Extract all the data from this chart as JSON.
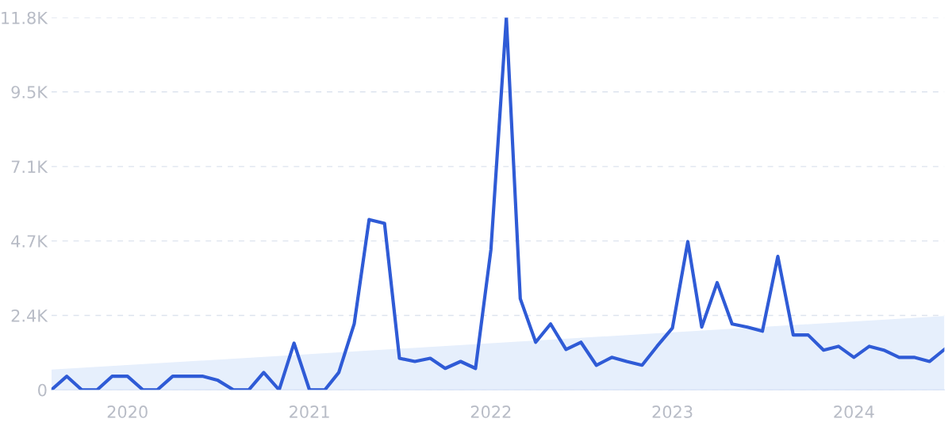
{
  "chart_data": {
    "type": "line",
    "x": [
      "2019-08",
      "2019-09",
      "2019-10",
      "2019-11",
      "2019-12",
      "2020-01",
      "2020-02",
      "2020-03",
      "2020-04",
      "2020-05",
      "2020-06",
      "2020-07",
      "2020-08",
      "2020-09",
      "2020-10",
      "2020-11",
      "2020-12",
      "2021-01",
      "2021-02",
      "2021-03",
      "2021-04",
      "2021-05",
      "2021-06",
      "2021-07",
      "2021-08",
      "2021-09",
      "2021-10",
      "2021-11",
      "2021-12",
      "2022-01",
      "2022-02",
      "2022-03",
      "2022-04",
      "2022-05",
      "2022-06",
      "2022-07",
      "2022-08",
      "2022-09",
      "2022-10",
      "2022-11",
      "2022-12",
      "2023-01",
      "2023-02",
      "2023-03",
      "2023-04",
      "2023-05",
      "2023-06",
      "2023-07",
      "2023-08",
      "2023-09",
      "2023-10",
      "2023-11",
      "2023-12",
      "2024-01",
      "2024-02",
      "2024-03",
      "2024-04",
      "2024-05",
      "2024-06",
      "2024-07"
    ],
    "series": [
      {
        "type": "area",
        "color": "#e6effc",
        "x": [
          "2019-08",
          "2024-07"
        ],
        "values": [
          640,
          2340
        ]
      },
      {
        "color": "#2f5bd6",
        "values": [
          0,
          430,
          0,
          0,
          430,
          430,
          0,
          0,
          430,
          430,
          430,
          300,
          0,
          0,
          550,
          0,
          1480,
          0,
          0,
          550,
          2090,
          5400,
          5280,
          1000,
          900,
          1000,
          680,
          900,
          680,
          4450,
          11800,
          2890,
          1510,
          2090,
          1280,
          1510,
          780,
          1030,
          900,
          780,
          1380,
          1960,
          4700,
          1990,
          3400,
          2090,
          1990,
          1860,
          4230,
          1740,
          1740,
          1260,
          1380,
          1030,
          1380,
          1260,
          1030,
          1030,
          900,
          1280
        ]
      }
    ],
    "xlim": [
      "2019-08",
      "2024-07"
    ],
    "xticks": [
      "2020",
      "2021",
      "2022",
      "2023",
      "2024"
    ],
    "ylim": [
      0,
      11800
    ],
    "yticks": [
      0,
      {
        "value": 2360,
        "label": "2.4K"
      },
      {
        "value": 4720,
        "label": "4.7K"
      },
      {
        "value": 7080,
        "label": "7.1K"
      },
      {
        "value": 9450,
        "label": "9.5K"
      },
      {
        "value": 11800,
        "label": "11.8K"
      }
    ],
    "grid": "y",
    "line_style": "solid",
    "marker": "none"
  }
}
